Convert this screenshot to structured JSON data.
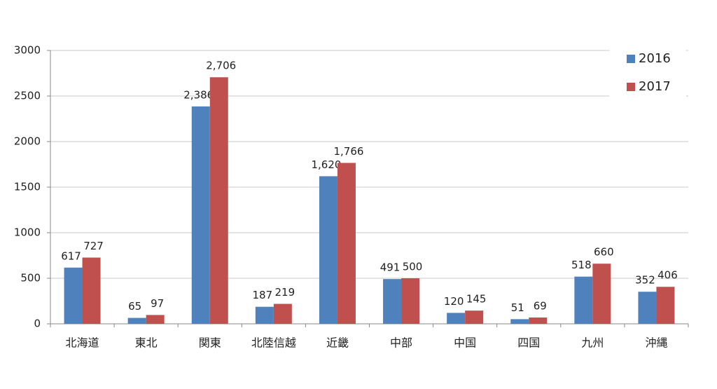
{
  "chart_data": {
    "type": "bar",
    "categories": [
      "北海道",
      "東北",
      "関東",
      "北陸信越",
      "近畿",
      "中部",
      "中国",
      "四国",
      "九州",
      "沖縄"
    ],
    "series": [
      {
        "name": "2016",
        "color": "#4f81bd",
        "values": [
          617,
          65,
          2386,
          187,
          1620,
          491,
          120,
          51,
          518,
          352
        ],
        "value_labels": [
          "617",
          "65",
          "2,386",
          "187",
          "1,620",
          "491",
          "120",
          "51",
          "518",
          "352"
        ]
      },
      {
        "name": "2017",
        "color": "#c0504d",
        "values": [
          727,
          97,
          2706,
          219,
          1766,
          500,
          145,
          69,
          660,
          406
        ],
        "value_labels": [
          "727",
          "97",
          "2,706",
          "219",
          "1,766",
          "500",
          "145",
          "69",
          "660",
          "406"
        ]
      }
    ],
    "ylim": [
      0,
      3000
    ],
    "yticks": [
      0,
      500,
      1000,
      1500,
      2000,
      2500,
      3000
    ],
    "grid": true,
    "legend": "right"
  }
}
